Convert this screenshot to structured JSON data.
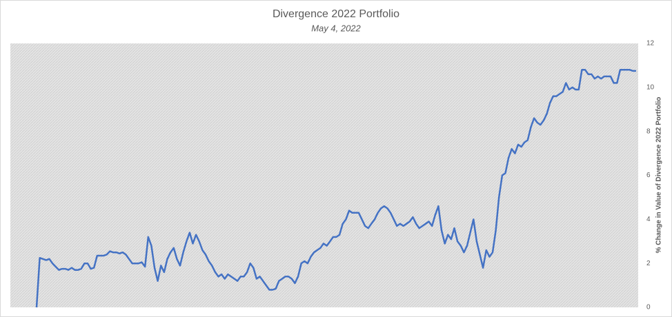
{
  "chart_data": {
    "type": "line",
    "title": "Divergence 2022 Portfolio",
    "subtitle": "May 4, 2022",
    "y_axis_label": "% Change in Value of Divergence 2022 Portfolio",
    "y_axis_side": "right",
    "ylim": [
      0,
      12
    ],
    "yticks": [
      0,
      2,
      4,
      6,
      8,
      10,
      12
    ],
    "grid": false,
    "series": [
      {
        "name": "Divergence 2022 Portfolio",
        "color": "#4472c4",
        "values": [
          0,
          2.25,
          2.2,
          2.15,
          2.2,
          2.0,
          1.85,
          1.7,
          1.75,
          1.75,
          1.7,
          1.8,
          1.7,
          1.7,
          1.75,
          2.0,
          2.0,
          1.75,
          1.8,
          2.35,
          2.35,
          2.35,
          2.4,
          2.55,
          2.5,
          2.5,
          2.45,
          2.5,
          2.4,
          2.2,
          2.0,
          2.0,
          2.0,
          2.05,
          1.85,
          3.2,
          2.8,
          1.8,
          1.2,
          1.9,
          1.6,
          2.2,
          2.5,
          2.7,
          2.2,
          1.9,
          2.5,
          3.0,
          3.4,
          2.9,
          3.3,
          3.0,
          2.6,
          2.4,
          2.1,
          1.9,
          1.6,
          1.4,
          1.5,
          1.3,
          1.5,
          1.4,
          1.3,
          1.2,
          1.4,
          1.4,
          1.6,
          2.0,
          1.8,
          1.3,
          1.4,
          1.2,
          1.0,
          0.8,
          0.8,
          0.85,
          1.2,
          1.3,
          1.4,
          1.4,
          1.3,
          1.1,
          1.4,
          2.0,
          2.1,
          2.0,
          2.3,
          2.5,
          2.6,
          2.7,
          2.9,
          2.8,
          3.0,
          3.2,
          3.2,
          3.3,
          3.8,
          4.0,
          4.4,
          4.3,
          4.3,
          4.3,
          4.0,
          3.7,
          3.6,
          3.8,
          4.0,
          4.3,
          4.5,
          4.6,
          4.5,
          4.3,
          4.0,
          3.7,
          3.8,
          3.7,
          3.8,
          3.9,
          4.1,
          3.8,
          3.6,
          3.7,
          3.8,
          3.9,
          3.7,
          4.2,
          4.6,
          3.5,
          2.9,
          3.3,
          3.1,
          3.6,
          3.0,
          2.8,
          2.5,
          2.8,
          3.4,
          4.0,
          3.0,
          2.4,
          1.8,
          2.6,
          2.3,
          2.5,
          3.5,
          5.0,
          6.0,
          6.1,
          6.8,
          7.2,
          7.0,
          7.4,
          7.3,
          7.5,
          7.6,
          8.2,
          8.6,
          8.4,
          8.3,
          8.5,
          8.8,
          9.3,
          9.6,
          9.6,
          9.7,
          9.8,
          10.2,
          9.9,
          10.0,
          9.9,
          9.9,
          10.8,
          10.8,
          10.6,
          10.6,
          10.4,
          10.5,
          10.4,
          10.5,
          10.5,
          10.5,
          10.2,
          10.2,
          10.8,
          10.8,
          10.8,
          10.8,
          10.75,
          10.75
        ]
      }
    ]
  }
}
